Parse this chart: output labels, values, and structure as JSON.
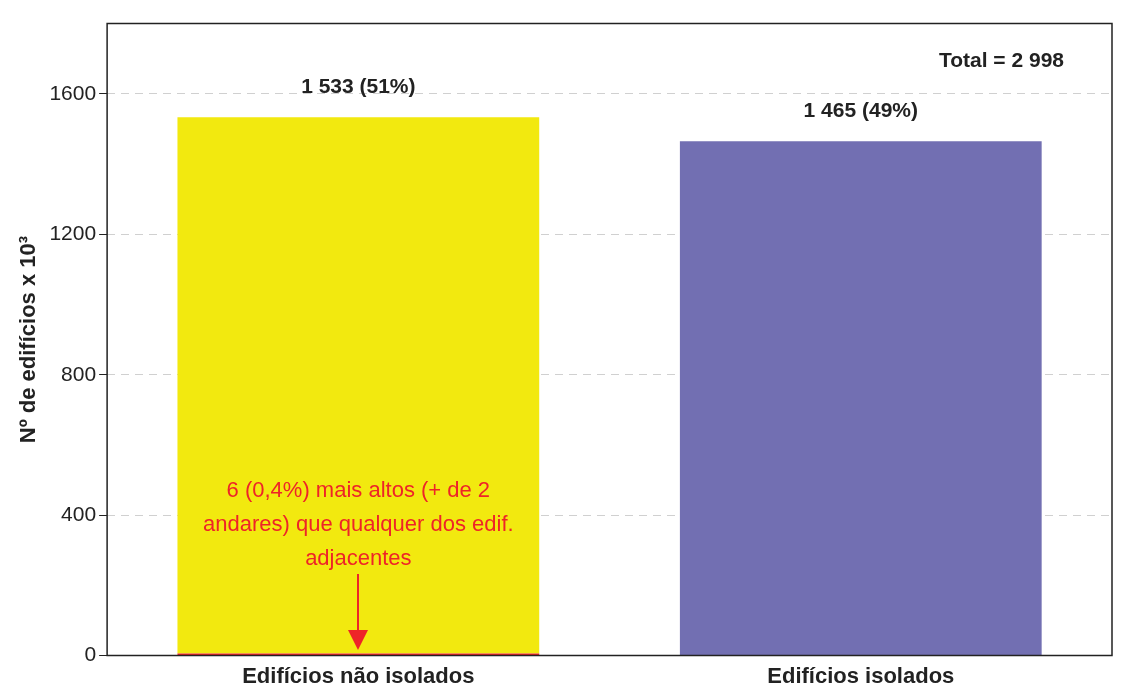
{
  "chart_data": {
    "type": "bar",
    "stacked": true,
    "ylabel": "Nº de edifícios x 10³",
    "categories": [
      "Edifícios não isolados",
      "Edifícios isolados"
    ],
    "series": [
      {
        "color": "#ee2428",
        "values": [
          6,
          null
        ]
      },
      {
        "color": "#f2e90f",
        "values": [
          1527,
          null
        ]
      },
      {
        "color": "#726fb2",
        "values": [
          null,
          1465
        ]
      }
    ],
    "totals": [
      "1 533 (51%)",
      "1 465 (49%)"
    ],
    "ylim": [
      0,
      1800
    ],
    "yticks": [
      0,
      400,
      800,
      1200,
      1600
    ],
    "grid": "y",
    "legend": false,
    "annotations": [
      "Total = 2 998",
      "6 (0,4%) mais altos (+ de 2 andares) que qualquer dos edif. adjacentes"
    ]
  }
}
